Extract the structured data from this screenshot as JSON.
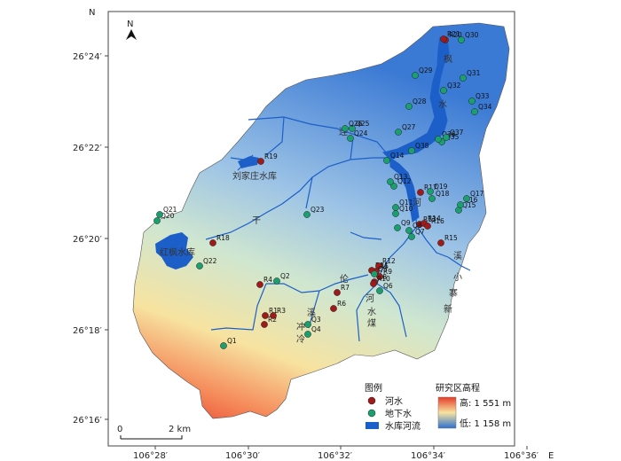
{
  "axes": {
    "north_label": "N",
    "east_label": "E",
    "lat_ticks": [
      "26°24′",
      "26°22′",
      "26°20′",
      "26°18′",
      "26°16′"
    ],
    "lon_ticks": [
      "106°28′",
      "106°30′",
      "106°32′",
      "106°34′",
      "106°36′"
    ]
  },
  "north_arrow": {
    "label": "N"
  },
  "scale_bar": {
    "start": "0",
    "end": "2 km"
  },
  "legend": {
    "title": "图例",
    "items": [
      {
        "label": "河水",
        "color": "#a01a1a"
      },
      {
        "label": "地下水",
        "color": "#1aa06e"
      },
      {
        "label": "水库河流",
        "color": "#1c5fc8"
      }
    ]
  },
  "elevation_legend": {
    "title": "研究区高程",
    "high": "高: 1 551 m",
    "low": "低: 1 158 m",
    "colors": [
      "#e63a2a",
      "#f7e3a0",
      "#2c6fd0"
    ]
  },
  "place_labels": [
    {
      "id": "liujiazhuang",
      "text": "刘家庄水库"
    },
    {
      "id": "hongfeng",
      "text": "红枫水库"
    },
    {
      "id": "feng",
      "text": "枫"
    },
    {
      "id": "shui",
      "text": "水"
    },
    {
      "id": "lian",
      "text": "连"
    },
    {
      "id": "he",
      "text": "河"
    },
    {
      "id": "gan",
      "text": "干"
    },
    {
      "id": "lun",
      "text": "伦"
    },
    {
      "id": "xi",
      "text": "溪"
    },
    {
      "id": "xiao",
      "text": "小"
    },
    {
      "id": "sai",
      "text": "寨"
    },
    {
      "id": "xin",
      "text": "新"
    },
    {
      "id": "luohe",
      "text": "河"
    },
    {
      "id": "shuiqiao",
      "text": "水"
    },
    {
      "id": "mei",
      "text": "煤"
    },
    {
      "id": "chong",
      "text": "冲"
    },
    {
      "id": "leng",
      "text": "冷"
    },
    {
      "id": "xiaoxi",
      "text": "溪"
    }
  ],
  "river_points": [
    "R1",
    "R2",
    "R3",
    "R4",
    "R5",
    "R6",
    "R7",
    "R8",
    "R9",
    "R10",
    "R11",
    "R12",
    "R13",
    "R14",
    "R15",
    "R16",
    "R17",
    "R18",
    "R19",
    "R20",
    "R21"
  ],
  "groundwater_points": [
    "Q1",
    "Q2",
    "Q3",
    "Q4",
    "Q5",
    "Q6",
    "Q7",
    "Q8",
    "Q9",
    "Q10",
    "Q11",
    "Q12",
    "Q13",
    "Q14",
    "Q15",
    "Q16",
    "Q17",
    "Q18",
    "Q19",
    "Q20",
    "Q21",
    "Q22",
    "Q23",
    "Q24",
    "Q25",
    "Q26",
    "Q27",
    "Q28",
    "Q29",
    "Q30",
    "Q31",
    "Q32",
    "Q33",
    "Q34",
    "Q35",
    "Q36",
    "Q37",
    "Q38"
  ]
}
